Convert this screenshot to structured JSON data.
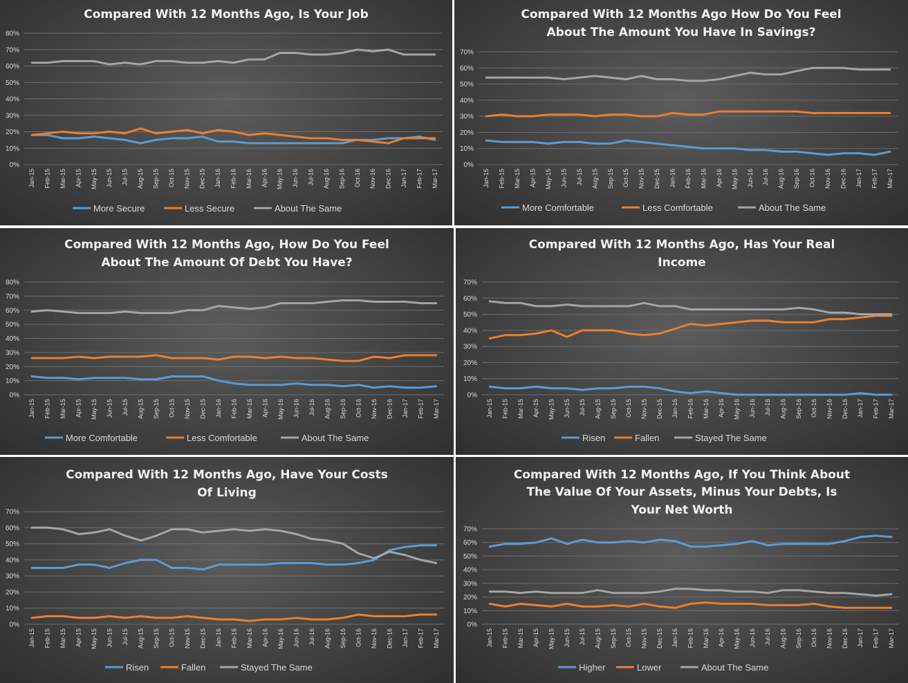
{
  "colors": {
    "series1": "#5b9bd5",
    "series2": "#ed7d31",
    "series3": "#a5a5a5"
  },
  "x_labels": [
    "Jan-15",
    "Feb-15",
    "Mar-15",
    "Apr-15",
    "May-15",
    "Jun-15",
    "Jul-15",
    "Aug-15",
    "Sep-15",
    "Oct-15",
    "Nov-15",
    "Dec-15",
    "Jan-16",
    "Feb-16",
    "Mar-16",
    "Apr-16",
    "May-16",
    "Jun-16",
    "Jul-16",
    "Aug-16",
    "Sep-16",
    "Oct-16",
    "Nov-16",
    "Dec-16",
    "Jan-17",
    "Feb-17",
    "Mar-17"
  ],
  "chart_data": [
    {
      "type": "line",
      "title": [
        "Compared With 12 Months Ago, Is Your Job"
      ],
      "ylim": [
        0,
        80
      ],
      "yticks": [
        "0%",
        "10%",
        "20%",
        "30%",
        "40%",
        "50%",
        "60%",
        "70%",
        "80%"
      ],
      "grid": true,
      "legend": "bottom",
      "series": [
        {
          "name": "More Secure",
          "values": [
            18,
            18,
            16,
            16,
            17,
            16,
            15,
            13,
            15,
            16,
            16,
            17,
            14,
            14,
            13,
            13,
            13,
            13,
            13,
            13,
            13,
            15,
            15,
            16,
            16,
            17,
            15
          ]
        },
        {
          "name": "Less Secure",
          "values": [
            18,
            19,
            20,
            19,
            19,
            20,
            19,
            22,
            19,
            20,
            21,
            19,
            21,
            20,
            18,
            19,
            18,
            17,
            16,
            16,
            15,
            15,
            14,
            13,
            16,
            16,
            16
          ]
        },
        {
          "name": "About The Same",
          "values": [
            62,
            62,
            63,
            63,
            63,
            61,
            62,
            61,
            63,
            63,
            62,
            62,
            63,
            62,
            64,
            64,
            68,
            68,
            67,
            67,
            68,
            70,
            69,
            70,
            67,
            67,
            67
          ]
        }
      ]
    },
    {
      "type": "line",
      "title": [
        "Compared With 12 Months Ago How Do You Feel",
        "About The Amount You Have In Savings?"
      ],
      "ylim": [
        0,
        70
      ],
      "yticks": [
        "0%",
        "10%",
        "20%",
        "30%",
        "40%",
        "50%",
        "60%",
        "70%"
      ],
      "grid": true,
      "legend": "bottom",
      "series": [
        {
          "name": "More Comfortable",
          "values": [
            15,
            14,
            14,
            14,
            13,
            14,
            14,
            13,
            13,
            15,
            14,
            13,
            12,
            11,
            10,
            10,
            10,
            9,
            9,
            8,
            8,
            7,
            6,
            7,
            7,
            6,
            8
          ]
        },
        {
          "name": "Less Comfortable",
          "values": [
            30,
            31,
            30,
            30,
            31,
            31,
            31,
            30,
            31,
            31,
            30,
            30,
            32,
            31,
            31,
            33,
            33,
            33,
            33,
            33,
            33,
            32,
            32,
            32,
            32,
            32,
            32
          ]
        },
        {
          "name": "About The Same",
          "values": [
            54,
            54,
            54,
            54,
            54,
            53,
            54,
            55,
            54,
            53,
            55,
            53,
            53,
            52,
            52,
            53,
            55,
            57,
            56,
            56,
            58,
            60,
            60,
            60,
            59,
            59,
            59
          ]
        }
      ]
    },
    {
      "type": "line",
      "title": [
        "Compared With 12 Months Ago, How Do You Feel",
        "About The Amount Of Debt You Have?"
      ],
      "ylim": [
        0,
        80
      ],
      "yticks": [
        "0%",
        "10%",
        "20%",
        "30%",
        "40%",
        "50%",
        "60%",
        "70%",
        "80%"
      ],
      "grid": true,
      "legend": "bottom",
      "series": [
        {
          "name": "More Comfortable",
          "values": [
            13,
            12,
            12,
            11,
            12,
            12,
            12,
            11,
            11,
            13,
            13,
            13,
            10,
            8,
            7,
            7,
            7,
            8,
            7,
            7,
            6,
            7,
            5,
            6,
            5,
            5,
            6
          ]
        },
        {
          "name": "Less Comfortable",
          "values": [
            26,
            26,
            26,
            27,
            26,
            27,
            27,
            27,
            28,
            26,
            26,
            26,
            25,
            27,
            27,
            26,
            27,
            26,
            26,
            25,
            24,
            24,
            27,
            26,
            28,
            28,
            28
          ]
        },
        {
          "name": "About The Same",
          "values": [
            59,
            60,
            59,
            58,
            58,
            58,
            59,
            58,
            58,
            58,
            60,
            60,
            63,
            62,
            61,
            62,
            65,
            65,
            65,
            66,
            67,
            67,
            66,
            66,
            66,
            65,
            65
          ]
        }
      ]
    },
    {
      "type": "line",
      "title": [
        "Compared With 12 Months Ago, Has Your Real",
        "Income"
      ],
      "ylim": [
        0,
        70
      ],
      "yticks": [
        "0%",
        "10%",
        "20%",
        "30%",
        "40%",
        "50%",
        "60%",
        "70%"
      ],
      "grid": true,
      "legend": "bottom",
      "series": [
        {
          "name": "Risen",
          "values": [
            5,
            4,
            4,
            5,
            4,
            4,
            3,
            4,
            4,
            5,
            5,
            4,
            2,
            1,
            2,
            1,
            0,
            0,
            0,
            0,
            0,
            0,
            0,
            0,
            1,
            0,
            0
          ]
        },
        {
          "name": "Fallen",
          "values": [
            35,
            37,
            37,
            38,
            40,
            36,
            40,
            40,
            40,
            38,
            37,
            38,
            41,
            44,
            43,
            44,
            45,
            46,
            46,
            45,
            45,
            45,
            47,
            47,
            48,
            49,
            49
          ]
        },
        {
          "name": "Stayed The Same",
          "values": [
            58,
            57,
            57,
            55,
            55,
            56,
            55,
            55,
            55,
            55,
            57,
            55,
            55,
            53,
            53,
            53,
            53,
            53,
            53,
            53,
            54,
            53,
            51,
            51,
            50,
            50,
            50
          ]
        }
      ]
    },
    {
      "type": "line",
      "title": [
        "Compared With 12 Months Ago, Have Your Costs",
        "Of Living"
      ],
      "ylim": [
        0,
        70
      ],
      "yticks": [
        "0%",
        "10%",
        "20%",
        "30%",
        "40%",
        "50%",
        "60%",
        "70%"
      ],
      "grid": true,
      "legend": "bottom",
      "series": [
        {
          "name": "Risen",
          "values": [
            35,
            35,
            35,
            37,
            37,
            35,
            38,
            40,
            40,
            35,
            35,
            34,
            37,
            37,
            37,
            37,
            38,
            38,
            38,
            37,
            37,
            38,
            40,
            46,
            48,
            49,
            49
          ]
        },
        {
          "name": "Fallen",
          "values": [
            4,
            5,
            5,
            4,
            4,
            5,
            4,
            5,
            4,
            4,
            5,
            4,
            3,
            3,
            2,
            3,
            3,
            4,
            3,
            3,
            4,
            6,
            5,
            5,
            5,
            6,
            6
          ]
        },
        {
          "name": "Stayed The Same",
          "values": [
            60,
            60,
            59,
            56,
            57,
            59,
            55,
            52,
            55,
            59,
            59,
            57,
            58,
            59,
            58,
            59,
            58,
            56,
            53,
            52,
            50,
            44,
            41,
            45,
            43,
            40,
            38
          ]
        }
      ]
    },
    {
      "type": "line",
      "title": [
        "Compared With 12 Months Ago, If You Think About",
        "The Value Of Your Assets, Minus Your Debts, Is",
        "Your Net Worth"
      ],
      "ylim": [
        0,
        70
      ],
      "yticks": [
        "0%",
        "10%",
        "20%",
        "30%",
        "40%",
        "50%",
        "60%",
        "70%"
      ],
      "grid": true,
      "legend": "bottom",
      "series": [
        {
          "name": "Higher",
          "values": [
            57,
            59,
            59,
            60,
            63,
            59,
            62,
            60,
            60,
            61,
            60,
            62,
            61,
            57,
            57,
            58,
            59,
            61,
            58,
            59,
            59,
            59,
            59,
            61,
            64,
            65,
            64
          ]
        },
        {
          "name": "Lower",
          "values": [
            15,
            13,
            15,
            14,
            13,
            15,
            13,
            13,
            14,
            13,
            15,
            13,
            12,
            15,
            16,
            15,
            15,
            15,
            14,
            14,
            14,
            15,
            13,
            12,
            12,
            12,
            12
          ]
        },
        {
          "name": "About The Same",
          "values": [
            24,
            24,
            23,
            24,
            23,
            23,
            23,
            25,
            23,
            23,
            23,
            24,
            26,
            26,
            25,
            25,
            24,
            24,
            23,
            25,
            25,
            24,
            23,
            23,
            22,
            21,
            22
          ]
        }
      ]
    }
  ]
}
